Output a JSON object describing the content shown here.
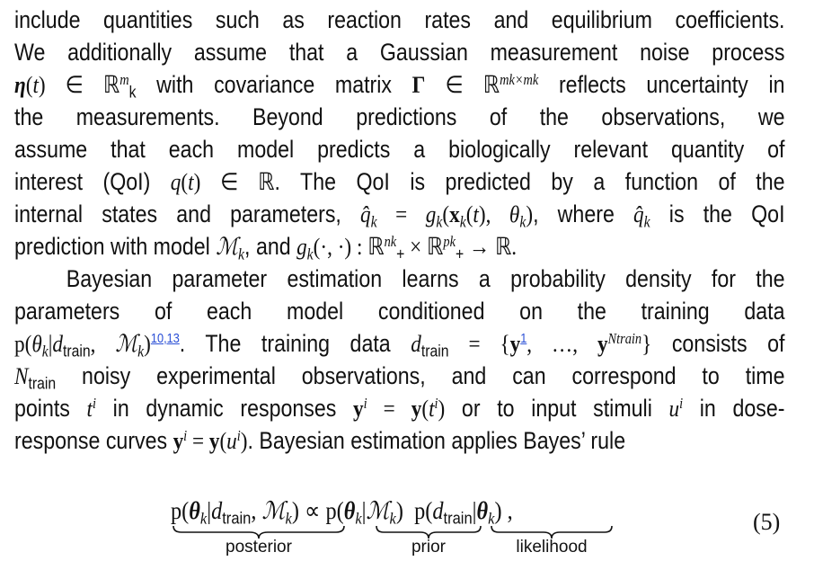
{
  "paragraph": {
    "lines": [
      [
        {
          "t": "include quantities such as reaction rates and equilibrium coefficients."
        }
      ],
      [
        {
          "t": "We additionally assume that a Gaussian measurement noise process"
        }
      ],
      [
        {
          "t": "η",
          "c": "bi"
        },
        {
          "t": "(",
          "c": "m"
        },
        {
          "t": "t",
          "c": "i"
        },
        {
          "t": ") ∈ ℝ",
          "c": "m"
        },
        {
          "t": "m",
          "c": "supi"
        },
        {
          "t": "k",
          "c": "sub"
        },
        {
          "t": " with covariance matrix "
        },
        {
          "t": "Γ",
          "c": "b"
        },
        {
          "t": " ∈ ℝ",
          "c": "m"
        },
        {
          "t": "mk×mk",
          "c": "supi"
        },
        {
          "t": " reflects uncertainty in"
        }
      ],
      [
        {
          "t": "the measurements. Beyond predictions of the observations, we"
        }
      ],
      [
        {
          "t": "assume that each model predicts a biologically relevant quantity of"
        }
      ],
      [
        {
          "t": "interest (QoI) "
        },
        {
          "t": "q",
          "c": "i"
        },
        {
          "t": "(",
          "c": "m"
        },
        {
          "t": "t",
          "c": "i"
        },
        {
          "t": ") ∈ ℝ",
          "c": "m"
        },
        {
          "t": ". The QoI is predicted by a function of the"
        }
      ],
      [
        {
          "t": "internal states and parameters, "
        },
        {
          "t": "q̂",
          "c": "i"
        },
        {
          "t": "k",
          "c": "subi"
        },
        {
          "t": " = ",
          "c": "m"
        },
        {
          "t": "g",
          "c": "i"
        },
        {
          "t": "k",
          "c": "subi"
        },
        {
          "t": "(",
          "c": "m"
        },
        {
          "t": "x",
          "c": "b"
        },
        {
          "t": "k",
          "c": "subi"
        },
        {
          "t": "(",
          "c": "m"
        },
        {
          "t": "t",
          "c": "i"
        },
        {
          "t": "), ",
          "c": "m"
        },
        {
          "t": "θ",
          "c": "i"
        },
        {
          "t": "k",
          "c": "subi"
        },
        {
          "t": ")",
          "c": "m"
        },
        {
          "t": ", where "
        },
        {
          "t": "q̂",
          "c": "i"
        },
        {
          "t": "k",
          "c": "subi"
        },
        {
          "t": " is the QoI"
        }
      ],
      [
        {
          "t": "prediction with model "
        },
        {
          "t": "ℳ",
          "c": "i"
        },
        {
          "t": "k",
          "c": "subi"
        },
        {
          "t": ", and "
        },
        {
          "t": "g",
          "c": "i"
        },
        {
          "t": "k",
          "c": "subi"
        },
        {
          "t": "(·, ·) : ℝ",
          "c": "m"
        },
        {
          "t": "nk",
          "c": "supi"
        },
        {
          "t": "+",
          "c": "sub"
        },
        {
          "t": " × ℝ",
          "c": "m"
        },
        {
          "t": "pk",
          "c": "supi"
        },
        {
          "t": "+",
          "c": "sub"
        },
        {
          "t": " → ℝ.",
          "c": "m"
        }
      ],
      [
        {
          "t": "Bayesian parameter estimation learns a probability density for the"
        }
      ],
      [
        {
          "t": "parameters of each model conditioned on the training data"
        }
      ],
      [
        {
          "t": "p(",
          "c": "m"
        },
        {
          "t": "θ",
          "c": "i"
        },
        {
          "t": "k",
          "c": "subi"
        },
        {
          "t": "|",
          "c": "m"
        },
        {
          "t": "d",
          "c": "i"
        },
        {
          "t": "train",
          "c": "sub"
        },
        {
          "t": ", ",
          "c": "m"
        },
        {
          "t": "ℳ",
          "c": "i"
        },
        {
          "t": "k",
          "c": "subi"
        },
        {
          "t": ")",
          "c": "m"
        },
        {
          "t": "10,13",
          "c": "link"
        },
        {
          "t": ". The training data "
        },
        {
          "t": "d",
          "c": "i"
        },
        {
          "t": "train",
          "c": "sub"
        },
        {
          "t": " = {",
          "c": "m"
        },
        {
          "t": "y",
          "c": "b"
        },
        {
          "t": "1",
          "c": "link"
        },
        {
          "t": ", …, ",
          "c": "m"
        },
        {
          "t": "y",
          "c": "b"
        },
        {
          "t": "Ntrain",
          "c": "supi"
        },
        {
          "t": "}",
          "c": "m"
        },
        {
          "t": " consists of"
        }
      ],
      [
        {
          "t": "N",
          "c": "i"
        },
        {
          "t": "train",
          "c": "sub"
        },
        {
          "t": " noisy experimental observations, and can correspond to time"
        }
      ],
      [
        {
          "t": "points "
        },
        {
          "t": "t",
          "c": "i"
        },
        {
          "t": "i",
          "c": "supi"
        },
        {
          "t": " in dynamic responses "
        },
        {
          "t": "y",
          "c": "b"
        },
        {
          "t": "i",
          "c": "supi"
        },
        {
          "t": " = ",
          "c": "m"
        },
        {
          "t": "y",
          "c": "b"
        },
        {
          "t": "(",
          "c": "m"
        },
        {
          "t": "t",
          "c": "i"
        },
        {
          "t": "i",
          "c": "supi"
        },
        {
          "t": ")",
          "c": "m"
        },
        {
          "t": " or to input stimuli "
        },
        {
          "t": "u",
          "c": "i"
        },
        {
          "t": "i",
          "c": "supi"
        },
        {
          "t": " in dose-"
        }
      ],
      [
        {
          "t": "response curves "
        },
        {
          "t": "y",
          "c": "b"
        },
        {
          "t": "i",
          "c": "supi"
        },
        {
          "t": " = ",
          "c": "m"
        },
        {
          "t": "y",
          "c": "b"
        },
        {
          "t": "(",
          "c": "m"
        },
        {
          "t": "u",
          "c": "i"
        },
        {
          "t": "i",
          "c": "supi"
        },
        {
          "t": ")",
          "c": "m"
        },
        {
          "t": ". Bayesian estimation applies Bayes’ rule"
        }
      ]
    ]
  },
  "equation": {
    "segments": [
      {
        "t": "p(",
        "c": "m"
      },
      {
        "t": "θ",
        "c": "bi"
      },
      {
        "t": "k",
        "c": "subi"
      },
      {
        "t": "|",
        "c": "m"
      },
      {
        "t": "d",
        "c": "i"
      },
      {
        "t": "train",
        "c": "sub"
      },
      {
        "t": ", ",
        "c": "m"
      },
      {
        "t": "ℳ",
        "c": "i"
      },
      {
        "t": "k",
        "c": "subi"
      },
      {
        "t": ")",
        "c": "m"
      },
      {
        "t": " ∝ ",
        "c": "m"
      },
      {
        "t": "p(",
        "c": "m"
      },
      {
        "t": "θ",
        "c": "bi"
      },
      {
        "t": "k",
        "c": "subi"
      },
      {
        "t": "|",
        "c": "m"
      },
      {
        "t": "ℳ",
        "c": "i"
      },
      {
        "t": "k",
        "c": "subi"
      },
      {
        "t": ")",
        "c": "m"
      },
      {
        "t": "  p(",
        "c": "m"
      },
      {
        "t": "d",
        "c": "i"
      },
      {
        "t": "train",
        "c": "sub"
      },
      {
        "t": "|",
        "c": "m"
      },
      {
        "t": "θ",
        "c": "bi"
      },
      {
        "t": "k",
        "c": "subi"
      },
      {
        "t": ") ,",
        "c": "m"
      }
    ],
    "labels": {
      "posterior": "posterior",
      "prior": "prior",
      "likelihood": "likelihood"
    },
    "number": "(5)"
  }
}
